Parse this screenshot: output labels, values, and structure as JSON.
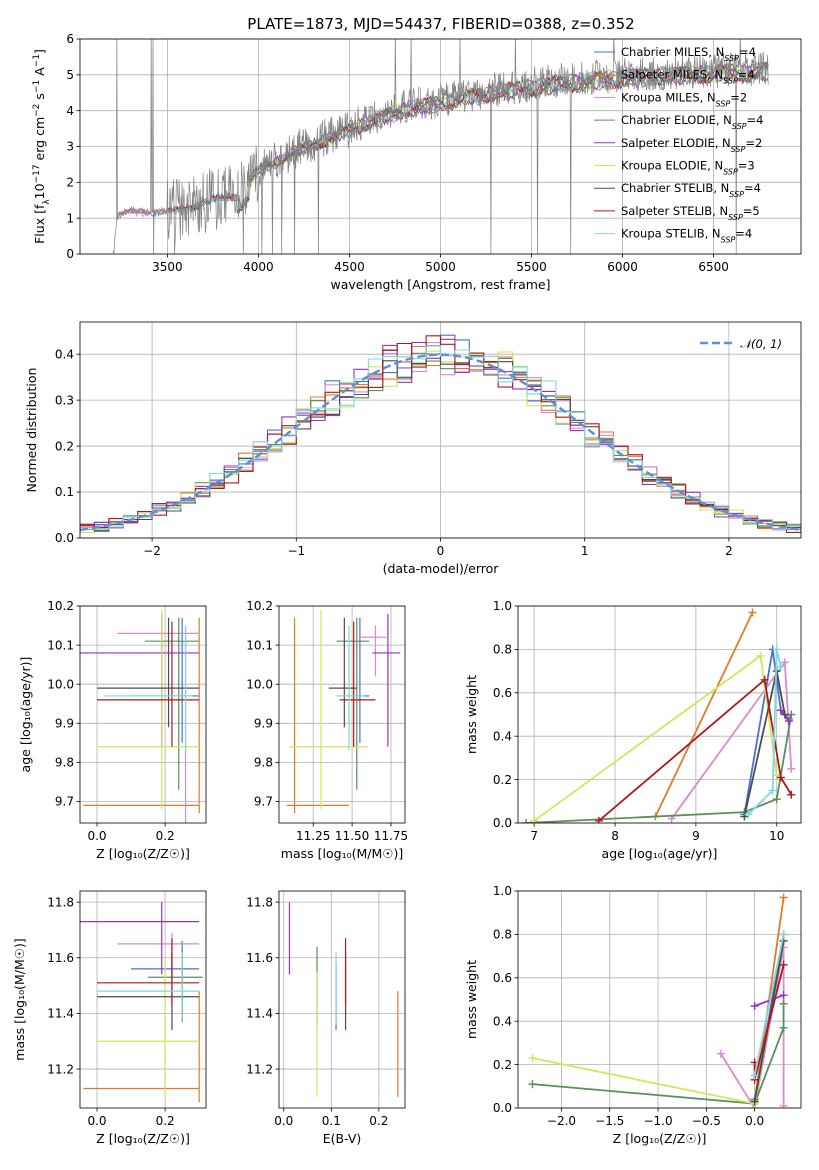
{
  "figure": {
    "title": "PLATE=1873, MJD=54437, FIBERID=0388, z=0.352"
  },
  "colors": {
    "Chabrier MILES": "#4a6fd6",
    "Salpeter MILES": "#e07b2a",
    "Kroupa MILES": "#d98ad0",
    "Chabrier ELODIE": "#5b8f5b",
    "Salpeter ELODIE": "#9a32c4",
    "Kroupa ELODIE": "#cde85a",
    "Chabrier STELIB": "#4d4d4d",
    "Salpeter STELIB": "#b21818",
    "Kroupa STELIB": "#7fd8e0",
    "data": "#808080",
    "normal": "#5b8fd6"
  },
  "chart_data": [
    {
      "id": "spectrum",
      "type": "line",
      "xlabel": "wavelength [Angstrom, rest frame]",
      "ylabel_parts": [
        "Flux [f",
        "λ",
        "10",
        "−17",
        " erg cm",
        "−2",
        " s",
        "−1",
        " A",
        "−1",
        "]"
      ],
      "xlim": [
        3020,
        6980
      ],
      "ylim": [
        0,
        6
      ],
      "xticks": [
        3500,
        4000,
        4500,
        5000,
        5500,
        6000,
        6500
      ],
      "yticks": [
        0,
        1,
        2,
        3,
        4,
        5,
        6
      ],
      "continuum": {
        "x": [
          3200,
          3230,
          3300,
          3400,
          3500,
          3600,
          3700,
          3800,
          3900,
          4000,
          4100,
          4200,
          4300,
          4400,
          4500,
          4600,
          4700,
          4800,
          4900,
          5000,
          5200,
          5400,
          5600,
          5800,
          6000,
          6200,
          6400,
          6600,
          6800
        ],
        "y": [
          0,
          1.1,
          1.2,
          1.2,
          1.2,
          1.3,
          1.45,
          1.6,
          1.7,
          2.4,
          2.6,
          2.9,
          3.1,
          3.3,
          3.5,
          3.75,
          3.9,
          4.1,
          4.2,
          4.3,
          4.5,
          4.65,
          4.8,
          4.9,
          5.0,
          5.05,
          5.1,
          5.15,
          5.2
        ]
      },
      "legend": [
        {
          "name": "Chabrier MILES",
          "n": "4"
        },
        {
          "name": "Salpeter MILES",
          "n": "4"
        },
        {
          "name": "Kroupa MILES",
          "n": "2"
        },
        {
          "name": "Chabrier ELODIE",
          "n": "4"
        },
        {
          "name": "Salpeter ELODIE",
          "n": "2"
        },
        {
          "name": "Kroupa ELODIE",
          "n": "3"
        },
        {
          "name": "Chabrier STELIB",
          "n": "4"
        },
        {
          "name": "Salpeter STELIB",
          "n": "5"
        },
        {
          "name": "Kroupa STELIB",
          "n": "4"
        }
      ]
    },
    {
      "id": "residuals",
      "type": "line",
      "xlabel": "(data-model)/error",
      "ylabel": "Normed distribution",
      "xlim": [
        -2.5,
        2.5
      ],
      "ylim": [
        0,
        0.47
      ],
      "xticks": [
        -2,
        -1,
        0,
        1,
        2
      ],
      "yticks": [
        0.0,
        0.1,
        0.2,
        0.3,
        0.4
      ],
      "legend": "𝒩(0, 1)",
      "normal": {
        "mean": 0,
        "sigma": 1
      }
    },
    {
      "id": "age_vs_Z",
      "type": "scatter",
      "xlabel": "Z [log₁₀(Z/Z☉)]",
      "ylabel": "age  [log₁₀(age/yr)]",
      "xlim": [
        -0.05,
        0.32
      ],
      "ylim": [
        9.645,
        10.2
      ],
      "xticks": [
        0.0,
        0.2
      ],
      "yticks": [
        9.7,
        9.8,
        9.9,
        10.0,
        10.1,
        10.2
      ],
      "points": [
        {
          "model": "Chabrier MILES",
          "x": 0.25,
          "y": 9.97,
          "xerr": [
            0.15,
            0.05
          ],
          "yerr": [
            0.12,
            0.2
          ]
        },
        {
          "model": "Salpeter MILES",
          "x": 0.3,
          "y": 9.69,
          "xerr": [
            0.34,
            0.0
          ],
          "yerr": [
            0.02,
            0.48
          ]
        },
        {
          "model": "Kroupa MILES",
          "x": 0.26,
          "y": 10.13,
          "xerr": [
            0.2,
            0.04
          ],
          "yerr": [
            0.5,
            0.02
          ]
        },
        {
          "model": "Chabrier ELODIE",
          "x": 0.24,
          "y": 10.11,
          "xerr": [
            0.1,
            0.06
          ],
          "yerr": [
            0.38,
            0.06
          ]
        },
        {
          "model": "Salpeter ELODIE",
          "x": 0.19,
          "y": 10.08,
          "xerr": [
            0.24,
            0.11
          ],
          "yerr": [
            0.24,
            0.1
          ]
        },
        {
          "model": "Kroupa ELODIE",
          "x": 0.19,
          "y": 9.84,
          "xerr": [
            0.19,
            0.11
          ],
          "yerr": [
            0.16,
            0.35
          ]
        },
        {
          "model": "Chabrier STELIB",
          "x": 0.21,
          "y": 9.99,
          "xerr": [
            0.21,
            0.09
          ],
          "yerr": [
            0.1,
            0.18
          ]
        },
        {
          "model": "Salpeter STELIB",
          "x": 0.22,
          "y": 9.96,
          "xerr": [
            0.22,
            0.08
          ],
          "yerr": [
            0.12,
            0.2
          ]
        },
        {
          "model": "Kroupa STELIB",
          "x": 0.26,
          "y": 9.97,
          "xerr": [
            0.24,
            0.02
          ],
          "yerr": [
            0.14,
            0.18
          ]
        }
      ]
    },
    {
      "id": "age_vs_mass",
      "type": "scatter",
      "xlabel": "mass [log₁₀(M/M☉)]",
      "xlim": [
        11.03,
        11.84
      ],
      "ylim": [
        9.645,
        10.2
      ],
      "xticks": [
        11.25,
        11.5,
        11.75
      ],
      "yticks": [
        9.7,
        9.8,
        9.9,
        10.0,
        10.1,
        10.2
      ],
      "points": [
        {
          "model": "Chabrier MILES",
          "x": 11.55,
          "y": 9.97,
          "xerr": [
            0.13,
            0.06
          ],
          "yerr": [
            0.12,
            0.2
          ]
        },
        {
          "model": "Salpeter MILES",
          "x": 11.13,
          "y": 9.69,
          "xerr": [
            0.05,
            0.35
          ],
          "yerr": [
            0.02,
            0.48
          ]
        },
        {
          "model": "Kroupa MILES",
          "x": 11.65,
          "y": 10.12,
          "xerr": [
            0.1,
            0.07
          ],
          "yerr": [
            0.1,
            0.03
          ]
        },
        {
          "model": "Chabrier ELODIE",
          "x": 11.53,
          "y": 10.11,
          "xerr": [
            0.13,
            0.08
          ],
          "yerr": [
            0.38,
            0.06
          ]
        },
        {
          "model": "Salpeter ELODIE",
          "x": 11.73,
          "y": 10.08,
          "xerr": [
            0.1,
            0.08
          ],
          "yerr": [
            0.24,
            0.1
          ]
        },
        {
          "model": "Kroupa ELODIE",
          "x": 11.3,
          "y": 9.84,
          "xerr": [
            0.2,
            0.3
          ],
          "yerr": [
            0.16,
            0.35
          ]
        },
        {
          "model": "Chabrier STELIB",
          "x": 11.45,
          "y": 9.99,
          "xerr": [
            0.1,
            0.08
          ],
          "yerr": [
            0.1,
            0.18
          ]
        },
        {
          "model": "Salpeter STELIB",
          "x": 11.51,
          "y": 9.96,
          "xerr": [
            0.09,
            0.14
          ],
          "yerr": [
            0.12,
            0.2
          ]
        },
        {
          "model": "Kroupa STELIB",
          "x": 11.48,
          "y": 9.97,
          "xerr": [
            0.08,
            0.1
          ],
          "yerr": [
            0.14,
            0.18
          ]
        }
      ]
    },
    {
      "id": "mass_weight_vs_age",
      "type": "line",
      "xlabel": "age  [log₁₀(age/yr)]",
      "ylabel": "mass weight",
      "xlim": [
        6.8,
        10.3
      ],
      "ylim": [
        0,
        1
      ],
      "xticks": [
        7,
        8,
        9,
        10
      ],
      "yticks": [
        0.0,
        0.2,
        0.4,
        0.6,
        0.8,
        1.0
      ],
      "series": [
        {
          "model": "Chabrier MILES",
          "x": [
            9.6,
            9.95,
            10.05,
            10.15
          ],
          "y": [
            0.04,
            0.8,
            0.52,
            0.48
          ]
        },
        {
          "model": "Salpeter MILES",
          "x": [
            8.5,
            9.7
          ],
          "y": [
            0.03,
            0.97
          ]
        },
        {
          "model": "Kroupa MILES",
          "x": [
            8.7,
            10.1,
            10.18
          ],
          "y": [
            0.02,
            0.74,
            0.25
          ]
        },
        {
          "model": "Chabrier ELODIE",
          "x": [
            6.9,
            9.6,
            10.0,
            10.18
          ],
          "y": [
            0.0,
            0.05,
            0.11,
            0.5
          ]
        },
        {
          "model": "Salpeter ELODIE",
          "x": [
            10.05,
            10.15
          ],
          "y": [
            0.52,
            0.47
          ]
        },
        {
          "model": "Kroupa ELODIE",
          "x": [
            7.0,
            9.8,
            10.0
          ],
          "y": [
            0.01,
            0.77,
            0.22
          ]
        },
        {
          "model": "Chabrier STELIB",
          "x": [
            9.6,
            10.0,
            10.1
          ],
          "y": [
            0.03,
            0.7,
            0.5
          ]
        },
        {
          "model": "Salpeter STELIB",
          "x": [
            7.8,
            9.85,
            10.05,
            10.18
          ],
          "y": [
            0.01,
            0.66,
            0.21,
            0.13
          ]
        },
        {
          "model": "Kroupa STELIB",
          "x": [
            9.65,
            9.95,
            10.0,
            10.05
          ],
          "y": [
            0.04,
            0.15,
            0.8,
            0.72
          ]
        }
      ]
    },
    {
      "id": "mass_vs_Z",
      "type": "scatter",
      "xlabel": "Z [log₁₀(Z/Z☉)]",
      "ylabel": "mass [log₁₀(M/M☉)]",
      "xlim": [
        -0.05,
        0.32
      ],
      "ylim": [
        11.06,
        11.84
      ],
      "xticks": [
        0.0,
        0.2
      ],
      "yticks": [
        11.2,
        11.4,
        11.6,
        11.8
      ],
      "points": [
        {
          "model": "Chabrier MILES",
          "x": 0.25,
          "y": 11.56,
          "xerr": [
            0.15,
            0.05
          ],
          "yerr": [
            0.18,
            0.1
          ]
        },
        {
          "model": "Salpeter MILES",
          "x": 0.3,
          "y": 11.13,
          "xerr": [
            0.34,
            0.0
          ],
          "yerr": [
            0.05,
            0.35
          ]
        },
        {
          "model": "Kroupa MILES",
          "x": 0.22,
          "y": 11.65,
          "xerr": [
            0.16,
            0.08
          ],
          "yerr": [
            0.12,
            0.04
          ]
        },
        {
          "model": "Chabrier ELODIE",
          "x": 0.25,
          "y": 11.53,
          "xerr": [
            0.1,
            0.06
          ],
          "yerr": [
            0.16,
            0.1
          ]
        },
        {
          "model": "Salpeter ELODIE",
          "x": 0.19,
          "y": 11.73,
          "xerr": [
            0.24,
            0.11
          ],
          "yerr": [
            0.19,
            0.07
          ]
        },
        {
          "model": "Kroupa ELODIE",
          "x": 0.2,
          "y": 11.3,
          "xerr": [
            0.2,
            0.1
          ],
          "yerr": [
            0.2,
            0.3
          ]
        },
        {
          "model": "Chabrier STELIB",
          "x": 0.22,
          "y": 11.46,
          "xerr": [
            0.22,
            0.08
          ],
          "yerr": [
            0.12,
            0.16
          ]
        },
        {
          "model": "Salpeter STELIB",
          "x": 0.22,
          "y": 11.51,
          "xerr": [
            0.22,
            0.08
          ],
          "yerr": [
            0.08,
            0.16
          ]
        },
        {
          "model": "Kroupa STELIB",
          "x": 0.25,
          "y": 11.48,
          "xerr": [
            0.25,
            0.05
          ],
          "yerr": [
            0.1,
            0.14
          ]
        }
      ]
    },
    {
      "id": "mass_vs_EBV",
      "type": "scatter",
      "xlabel": "E(B-V)",
      "xlim": [
        -0.01,
        0.255
      ],
      "ylim": [
        11.06,
        11.84
      ],
      "xticks": [
        0.0,
        0.1,
        0.2
      ],
      "yticks": [
        11.2,
        11.4,
        11.6,
        11.8
      ],
      "points": [
        {
          "model": "Chabrier MILES",
          "x": 0.11,
          "y": 11.5,
          "yerr": [
            0.16,
            0.08
          ]
        },
        {
          "model": "Salpeter MILES",
          "x": 0.24,
          "y": 11.27,
          "yerr": [
            0.17,
            0.21
          ]
        },
        {
          "model": "Kroupa MILES",
          "x": 0.13,
          "y": 11.52,
          "yerr": [
            0.12,
            0.04
          ]
        },
        {
          "model": "Chabrier ELODIE",
          "x": 0.07,
          "y": 11.52,
          "yerr": [
            0.16,
            0.12
          ]
        },
        {
          "model": "Salpeter ELODIE",
          "x": 0.012,
          "y": 11.7,
          "yerr": [
            0.16,
            0.1
          ]
        },
        {
          "model": "Kroupa ELODIE",
          "x": 0.07,
          "y": 11.35,
          "yerr": [
            0.25,
            0.2
          ]
        },
        {
          "model": "Chabrier STELIB",
          "x": 0.13,
          "y": 11.46,
          "yerr": [
            0.12,
            0.16
          ]
        },
        {
          "model": "Salpeter STELIB",
          "x": 0.13,
          "y": 11.53,
          "yerr": [
            0.1,
            0.14
          ]
        },
        {
          "model": "Kroupa STELIB",
          "x": 0.11,
          "y": 11.48,
          "yerr": [
            0.12,
            0.14
          ]
        }
      ]
    },
    {
      "id": "mass_weight_vs_Z",
      "type": "line",
      "xlabel": "Z [log₁₀(Z/Z☉)]",
      "ylabel": "mass weight",
      "xlim": [
        -2.45,
        0.48
      ],
      "ylim": [
        0,
        1
      ],
      "xticks": [
        -2.0,
        -1.5,
        -1.0,
        -0.5,
        0.0
      ],
      "yticks": [
        0.0,
        0.2,
        0.4,
        0.6,
        0.8,
        1.0
      ],
      "xtick_labels": [
        "−2.0",
        "−1.5",
        "−1.0",
        "−0.5",
        "0.0"
      ],
      "series": [
        {
          "model": "Chabrier MILES",
          "x": [
            0.0,
            0.3
          ],
          "y": [
            0.04,
            0.8
          ]
        },
        {
          "model": "Salpeter MILES",
          "x": [
            0.0,
            0.3
          ],
          "y": [
            0.03,
            0.97
          ]
        },
        {
          "model": "Kroupa MILES",
          "x": [
            -0.35,
            0.0,
            0.3,
            0.3
          ],
          "y": [
            0.25,
            0.0,
            0.74,
            0.01
          ]
        },
        {
          "model": "Chabrier ELODIE",
          "x": [
            -2.3,
            0.0,
            0.3,
            0.3
          ],
          "y": [
            0.11,
            0.02,
            0.37,
            0.48
          ]
        },
        {
          "model": "Salpeter ELODIE",
          "x": [
            0.0,
            0.3
          ],
          "y": [
            0.47,
            0.52
          ]
        },
        {
          "model": "Kroupa ELODIE",
          "x": [
            -2.3,
            0.0,
            0.3
          ],
          "y": [
            0.23,
            0.02,
            0.77
          ]
        },
        {
          "model": "Chabrier STELIB",
          "x": [
            0.0,
            0.3
          ],
          "y": [
            0.03,
            0.77
          ]
        },
        {
          "model": "Salpeter STELIB",
          "x": [
            0.0,
            0.0,
            0.3
          ],
          "y": [
            0.21,
            0.13,
            0.66
          ]
        },
        {
          "model": "Kroupa STELIB",
          "x": [
            0.0,
            0.3
          ],
          "y": [
            0.15,
            0.8
          ]
        }
      ]
    }
  ]
}
